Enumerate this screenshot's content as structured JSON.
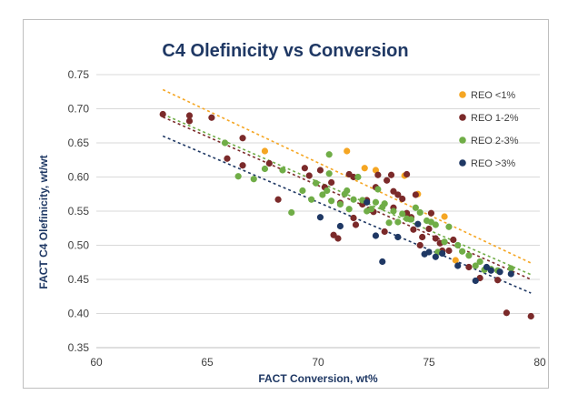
{
  "chart_data": {
    "type": "scatter",
    "title": "C4 Olefinicity vs Conversion",
    "xlabel": "FACT Conversion, wt%",
    "ylabel": "FACT C4 Olefinicity, wt/wt",
    "xlim": [
      60,
      80
    ],
    "ylim": [
      0.35,
      0.75
    ],
    "x_ticks": [
      "60",
      "65",
      "70",
      "75",
      "80"
    ],
    "y_ticks": [
      "0.35",
      "0.40",
      "0.45",
      "0.50",
      "0.55",
      "0.60",
      "0.65",
      "0.70",
      "0.75"
    ],
    "grid": "horizontal",
    "legend_position": "top-right",
    "series": [
      {
        "name": "REO <1%",
        "color": "#f5a623",
        "points": [
          [
            67.6,
            0.638
          ],
          [
            71.3,
            0.638
          ],
          [
            72.1,
            0.613
          ],
          [
            72.6,
            0.61
          ],
          [
            73.9,
            0.602
          ],
          [
            74.5,
            0.575
          ],
          [
            75.7,
            0.542
          ],
          [
            76.2,
            0.478
          ]
        ],
        "trendline": [
          [
            63.0,
            0.728
          ],
          [
            79.6,
            0.474
          ]
        ]
      },
      {
        "name": "REO 1-2%",
        "color": "#7b2a2a",
        "points": [
          [
            63.0,
            0.692
          ],
          [
            64.2,
            0.69
          ],
          [
            64.2,
            0.682
          ],
          [
            65.2,
            0.687
          ],
          [
            65.9,
            0.627
          ],
          [
            66.6,
            0.657
          ],
          [
            66.6,
            0.617
          ],
          [
            67.8,
            0.62
          ],
          [
            68.2,
            0.567
          ],
          [
            69.4,
            0.613
          ],
          [
            69.6,
            0.602
          ],
          [
            70.1,
            0.61
          ],
          [
            70.3,
            0.585
          ],
          [
            70.6,
            0.592
          ],
          [
            70.7,
            0.515
          ],
          [
            70.9,
            0.51
          ],
          [
            71.0,
            0.562
          ],
          [
            71.4,
            0.604
          ],
          [
            71.6,
            0.6
          ],
          [
            71.6,
            0.54
          ],
          [
            71.7,
            0.53
          ],
          [
            72.0,
            0.56
          ],
          [
            72.2,
            0.566
          ],
          [
            72.3,
            0.552
          ],
          [
            72.5,
            0.549
          ],
          [
            72.6,
            0.585
          ],
          [
            72.7,
            0.603
          ],
          [
            73.0,
            0.52
          ],
          [
            73.1,
            0.595
          ],
          [
            73.3,
            0.603
          ],
          [
            73.4,
            0.579
          ],
          [
            73.4,
            0.555
          ],
          [
            73.6,
            0.574
          ],
          [
            73.8,
            0.568
          ],
          [
            74.0,
            0.604
          ],
          [
            74.0,
            0.547
          ],
          [
            74.2,
            0.541
          ],
          [
            74.3,
            0.523
          ],
          [
            74.4,
            0.574
          ],
          [
            74.6,
            0.5
          ],
          [
            74.7,
            0.512
          ],
          [
            75.0,
            0.524
          ],
          [
            75.1,
            0.547
          ],
          [
            75.3,
            0.51
          ],
          [
            75.5,
            0.503
          ],
          [
            75.6,
            0.492
          ],
          [
            75.9,
            0.492
          ],
          [
            76.1,
            0.508
          ],
          [
            76.8,
            0.468
          ],
          [
            77.3,
            0.452
          ],
          [
            78.1,
            0.449
          ],
          [
            78.5,
            0.401
          ],
          [
            79.6,
            0.396
          ]
        ]
      },
      {
        "name": "REO 2-3%",
        "color": "#70ad47",
        "points": [
          [
            65.8,
            0.65
          ],
          [
            66.4,
            0.601
          ],
          [
            67.1,
            0.597
          ],
          [
            67.6,
            0.612
          ],
          [
            68.4,
            0.61
          ],
          [
            68.8,
            0.548
          ],
          [
            69.3,
            0.58
          ],
          [
            69.7,
            0.567
          ],
          [
            69.9,
            0.591
          ],
          [
            70.2,
            0.574
          ],
          [
            70.4,
            0.58
          ],
          [
            70.5,
            0.605
          ],
          [
            70.5,
            0.633
          ],
          [
            70.6,
            0.565
          ],
          [
            71.0,
            0.56
          ],
          [
            71.2,
            0.575
          ],
          [
            71.3,
            0.58
          ],
          [
            71.4,
            0.553
          ],
          [
            71.6,
            0.567
          ],
          [
            71.8,
            0.6
          ],
          [
            72.0,
            0.566
          ],
          [
            72.2,
            0.55
          ],
          [
            72.4,
            0.553
          ],
          [
            72.6,
            0.563
          ],
          [
            72.7,
            0.582
          ],
          [
            72.9,
            0.556
          ],
          [
            73.0,
            0.561
          ],
          [
            73.2,
            0.533
          ],
          [
            73.4,
            0.55
          ],
          [
            73.6,
            0.534
          ],
          [
            73.8,
            0.546
          ],
          [
            74.0,
            0.539
          ],
          [
            74.2,
            0.538
          ],
          [
            74.4,
            0.555
          ],
          [
            74.6,
            0.548
          ],
          [
            74.9,
            0.536
          ],
          [
            75.1,
            0.534
          ],
          [
            75.3,
            0.53
          ],
          [
            75.4,
            0.49
          ],
          [
            75.7,
            0.505
          ],
          [
            75.9,
            0.527
          ],
          [
            76.3,
            0.5
          ],
          [
            76.5,
            0.491
          ],
          [
            76.8,
            0.485
          ],
          [
            77.1,
            0.47
          ],
          [
            77.3,
            0.476
          ],
          [
            77.5,
            0.464
          ],
          [
            77.8,
            0.465
          ],
          [
            78.1,
            0.463
          ],
          [
            78.7,
            0.466
          ]
        ],
        "trendline": [
          [
            63.0,
            0.692
          ],
          [
            79.6,
            0.457
          ]
        ]
      },
      {
        "name": "REO >3%",
        "color": "#1f3864",
        "points": [
          [
            70.1,
            0.541
          ],
          [
            71.0,
            0.528
          ],
          [
            72.2,
            0.563
          ],
          [
            72.6,
            0.514
          ],
          [
            72.9,
            0.476
          ],
          [
            73.6,
            0.512
          ],
          [
            74.5,
            0.531
          ],
          [
            74.8,
            0.487
          ],
          [
            75.0,
            0.49
          ],
          [
            75.3,
            0.483
          ],
          [
            75.6,
            0.488
          ],
          [
            76.3,
            0.47
          ],
          [
            77.1,
            0.448
          ],
          [
            77.6,
            0.468
          ],
          [
            77.8,
            0.463
          ],
          [
            78.2,
            0.461
          ],
          [
            78.7,
            0.458
          ]
        ],
        "trendline": [
          [
            63.0,
            0.66
          ],
          [
            79.6,
            0.43
          ]
        ]
      }
    ],
    "extra_trendline": {
      "color": "#7b2a2a",
      "points": [
        [
          63.0,
          0.688
        ],
        [
          79.6,
          0.45
        ]
      ]
    }
  }
}
